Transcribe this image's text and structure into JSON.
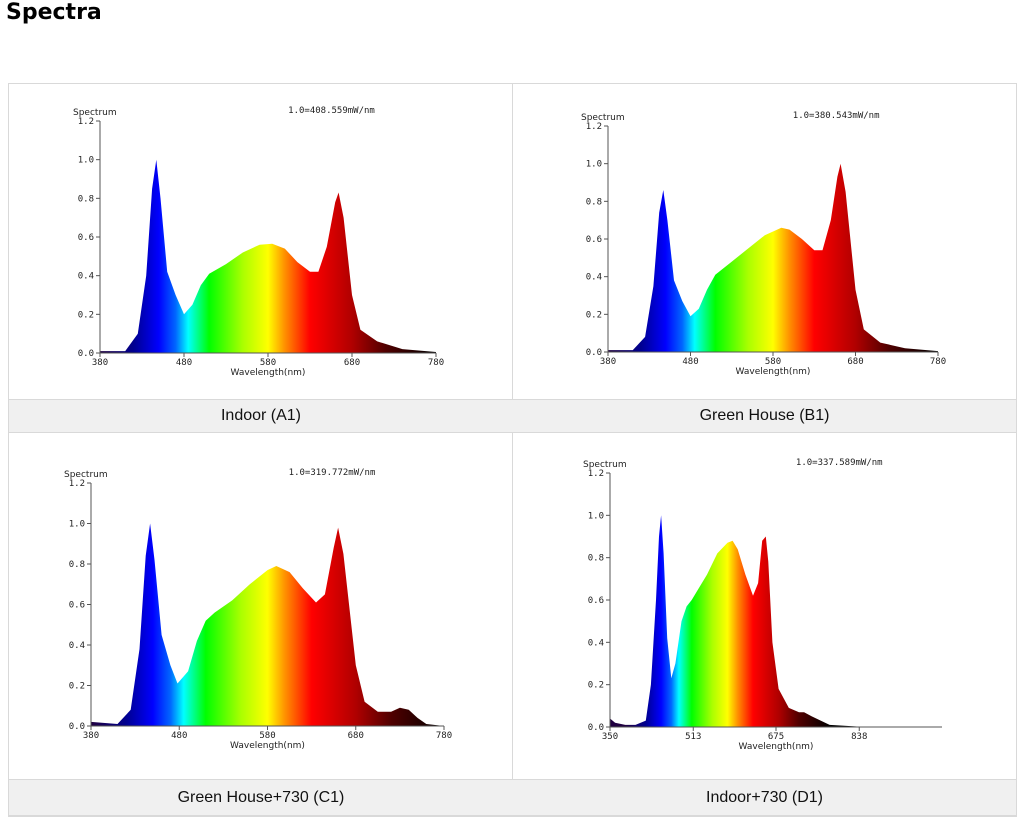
{
  "page_title": "Spectra",
  "chart_data": [
    {
      "type": "area",
      "caption": "Indoor (A1)",
      "ylabel": "Spectrum",
      "xlabel": "Wavelength(nm)",
      "annotation": "1.0=408.559mW/nm",
      "xlim": [
        380,
        780
      ],
      "ylim": [
        0,
        1.2
      ],
      "xticks": [
        380,
        480,
        580,
        680,
        780
      ],
      "yticks": [
        "0.0",
        "0.2",
        "0.4",
        "0.6",
        "0.8",
        "1.0",
        "1.2"
      ],
      "x": [
        380,
        410,
        425,
        435,
        442,
        447,
        452,
        460,
        470,
        480,
        490,
        500,
        510,
        530,
        550,
        570,
        585,
        600,
        615,
        630,
        640,
        650,
        660,
        664,
        670,
        680,
        690,
        710,
        740,
        780
      ],
      "y": [
        0.01,
        0.01,
        0.1,
        0.4,
        0.85,
        1.0,
        0.8,
        0.42,
        0.3,
        0.2,
        0.25,
        0.35,
        0.41,
        0.46,
        0.52,
        0.56,
        0.565,
        0.54,
        0.47,
        0.42,
        0.42,
        0.55,
        0.78,
        0.83,
        0.7,
        0.3,
        0.12,
        0.06,
        0.02,
        0.005
      ]
    },
    {
      "type": "area",
      "caption": "Green House (B1)",
      "ylabel": "Spectrum",
      "xlabel": "Wavelength(nm)",
      "annotation": "1.0=380.543mW/nm",
      "xlim": [
        380,
        780
      ],
      "ylim": [
        0,
        1.2
      ],
      "xticks": [
        380,
        480,
        580,
        680,
        780
      ],
      "yticks": [
        "0.0",
        "0.2",
        "0.4",
        "0.6",
        "0.8",
        "1.0",
        "1.2"
      ],
      "x": [
        380,
        410,
        425,
        435,
        442,
        447,
        452,
        460,
        470,
        480,
        490,
        500,
        510,
        530,
        550,
        570,
        590,
        600,
        615,
        630,
        640,
        650,
        658,
        662,
        668,
        680,
        690,
        710,
        740,
        780
      ],
      "y": [
        0.01,
        0.01,
        0.08,
        0.35,
        0.74,
        0.86,
        0.7,
        0.38,
        0.27,
        0.19,
        0.23,
        0.33,
        0.41,
        0.48,
        0.55,
        0.62,
        0.66,
        0.65,
        0.6,
        0.54,
        0.54,
        0.7,
        0.93,
        1.0,
        0.85,
        0.33,
        0.12,
        0.05,
        0.02,
        0.005
      ]
    },
    {
      "type": "area",
      "caption": "Green House+730 (C1)",
      "ylabel": "Spectrum",
      "xlabel": "Wavelength(nm)",
      "annotation": "1.0=319.772mW/nm",
      "xlim": [
        380,
        780
      ],
      "ylim": [
        0,
        1.2
      ],
      "xticks": [
        380,
        480,
        580,
        680,
        780
      ],
      "yticks": [
        "0.0",
        "0.2",
        "0.4",
        "0.6",
        "0.8",
        "1.0",
        "1.2"
      ],
      "x": [
        380,
        410,
        425,
        435,
        442,
        447,
        452,
        460,
        470,
        478,
        490,
        500,
        510,
        520,
        540,
        560,
        580,
        590,
        605,
        620,
        635,
        645,
        655,
        660,
        666,
        680,
        690,
        705,
        720,
        730,
        740,
        750,
        760,
        780
      ],
      "y": [
        0.02,
        0.01,
        0.08,
        0.38,
        0.84,
        1.0,
        0.82,
        0.45,
        0.3,
        0.21,
        0.27,
        0.42,
        0.52,
        0.56,
        0.62,
        0.7,
        0.77,
        0.79,
        0.76,
        0.68,
        0.61,
        0.65,
        0.88,
        0.98,
        0.85,
        0.3,
        0.12,
        0.07,
        0.07,
        0.09,
        0.08,
        0.04,
        0.01,
        0.0
      ]
    },
    {
      "type": "area",
      "caption": "Indoor+730 (D1)",
      "ylabel": "Spectrum",
      "xlabel": "Wavelength(nm)",
      "annotation": "1.0=337.589mW/nm",
      "xlim": [
        350,
        1000
      ],
      "ylim": [
        0,
        1.2
      ],
      "xticks": [
        350,
        513,
        675,
        838
      ],
      "yticks": [
        "0.0",
        "0.2",
        "0.4",
        "0.6",
        "0.8",
        "1.0",
        "1.2"
      ],
      "x": [
        350,
        360,
        380,
        400,
        420,
        430,
        440,
        446,
        450,
        455,
        462,
        470,
        478,
        490,
        500,
        510,
        520,
        540,
        560,
        580,
        590,
        600,
        615,
        630,
        640,
        648,
        655,
        660,
        668,
        680,
        700,
        720,
        730,
        745,
        780,
        850,
        1000
      ],
      "y": [
        0.04,
        0.02,
        0.01,
        0.01,
        0.03,
        0.2,
        0.6,
        0.9,
        1.0,
        0.82,
        0.42,
        0.23,
        0.3,
        0.5,
        0.57,
        0.6,
        0.64,
        0.72,
        0.82,
        0.87,
        0.88,
        0.84,
        0.72,
        0.62,
        0.68,
        0.88,
        0.9,
        0.78,
        0.4,
        0.18,
        0.09,
        0.07,
        0.07,
        0.05,
        0.01,
        0.0,
        0.0
      ]
    }
  ]
}
